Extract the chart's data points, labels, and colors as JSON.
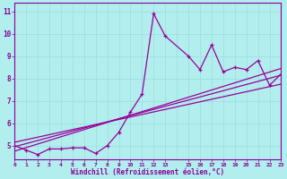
{
  "xlabel": "Windchill (Refroidissement éolien,°C)",
  "bg_color": "#b2eeee",
  "line_color": "#990099",
  "x_data": [
    0,
    1,
    2,
    3,
    4,
    5,
    6,
    7,
    8,
    9,
    10,
    11,
    12,
    13,
    15,
    16,
    17,
    18,
    19,
    20,
    21,
    22,
    23
  ],
  "y_data": [
    5.0,
    4.8,
    4.6,
    4.85,
    4.85,
    4.9,
    4.9,
    4.65,
    5.0,
    5.6,
    6.5,
    7.3,
    10.9,
    9.9,
    9.0,
    8.4,
    9.5,
    8.3,
    8.5,
    8.4,
    8.8,
    7.7,
    8.2
  ],
  "trend1_x": [
    0,
    23
  ],
  "trend1_y": [
    4.95,
    8.15
  ],
  "trend2_x": [
    0,
    23
  ],
  "trend2_y": [
    5.15,
    7.75
  ],
  "trend3_x": [
    0,
    23
  ],
  "trend3_y": [
    4.75,
    8.45
  ],
  "xlim": [
    0,
    23
  ],
  "ylim": [
    4.4,
    11.4
  ],
  "yticks": [
    5,
    6,
    7,
    8,
    9,
    10,
    11
  ],
  "xticks": [
    0,
    1,
    2,
    3,
    4,
    5,
    6,
    7,
    8,
    9,
    10,
    11,
    12,
    13,
    15,
    16,
    17,
    18,
    19,
    20,
    21,
    22,
    23
  ],
  "xtick_labels": [
    "0",
    "1",
    "2",
    "3",
    "4",
    "5",
    "6",
    "7",
    "8",
    "9",
    "10",
    "11",
    "12",
    "13",
    "15",
    "16",
    "17",
    "18",
    "19",
    "20",
    "21",
    "22",
    "23"
  ],
  "grid_color": "#99dddd",
  "font_color": "#880099",
  "spine_color": "#880099"
}
